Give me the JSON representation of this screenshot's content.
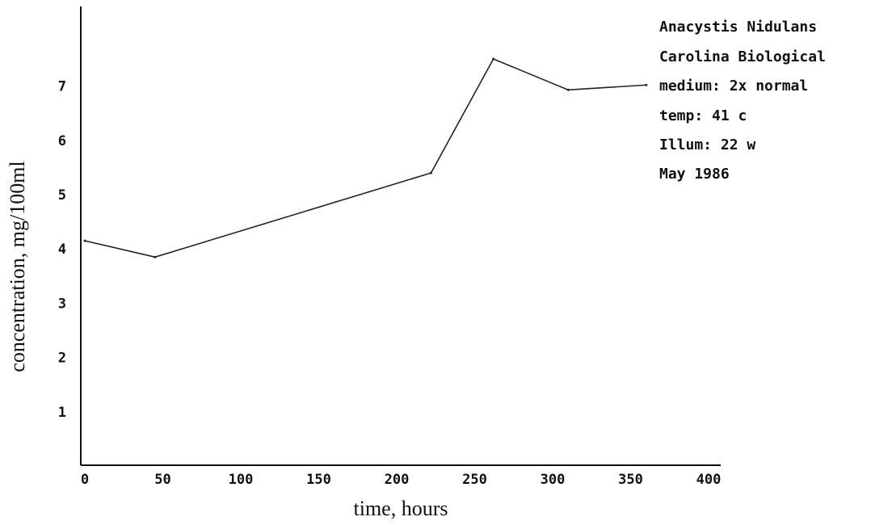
{
  "chart_data": {
    "type": "line",
    "title": "",
    "xlabel": "time, hours",
    "ylabel": "concentration, mg/100ml",
    "xlim": [
      0,
      400
    ],
    "ylim": [
      0,
      8
    ],
    "x_ticks": [
      "0",
      "50",
      "100",
      "150",
      "200",
      "250",
      "300",
      "350",
      "400"
    ],
    "y_ticks": [
      "1",
      "2",
      "3",
      "4",
      "5",
      "6",
      "7"
    ],
    "grid": false,
    "legend": "none",
    "series": [
      {
        "x": [
          0,
          45,
          222,
          262,
          310,
          360
        ],
        "y": [
          4.15,
          3.85,
          5.4,
          7.5,
          6.93,
          7.02
        ]
      }
    ],
    "annotations": [
      "Anacystis Nidulans",
      "Carolina Biological",
      "medium: 2x normal",
      "temp: 41 c",
      "Illum: 22 w",
      "May 1986"
    ]
  }
}
